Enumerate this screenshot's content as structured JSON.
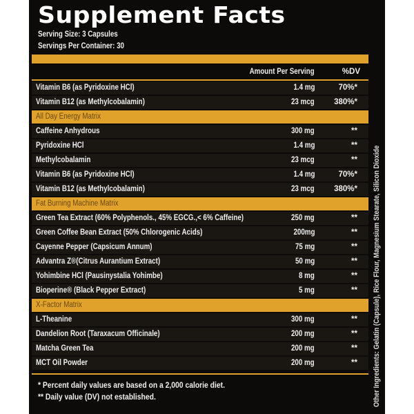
{
  "title": "Supplement Facts",
  "serving_size": "Serving Size: 3 Capsules",
  "servings_per_container": "Servings Per Container: 30",
  "columns": {
    "amount": "Amount Per Serving",
    "dv": "%DV"
  },
  "rows": [
    {
      "name": "Vitamin B6 (as Pyridoxine HCl)",
      "amount": "1.4 mg",
      "dv": "70%*"
    },
    {
      "name": "Vitamin B12 (as Methylcobalamin)",
      "amount": "23 mcg",
      "dv": "380%*"
    },
    {
      "section": "All Day Energy Matrix"
    },
    {
      "name": "Caffeine Anhydrous",
      "amount": "300 mg",
      "dv": "**"
    },
    {
      "name": "Pyridoxine HCl",
      "amount": "1.4 mg",
      "dv": "**"
    },
    {
      "name": "Methylcobalamin",
      "amount": "23 mcg",
      "dv": "**"
    },
    {
      "name": "Vitamin B6 (as Pyridoxine HCl)",
      "amount": "1.4 mg",
      "dv": "70%*"
    },
    {
      "name": "Vitamin B12 (as Methylcobalamin)",
      "amount": "23 mcg",
      "dv": "380%*"
    },
    {
      "section": "Fat Burning Machine Matrix"
    },
    {
      "name": "Green Tea Extract (60% Polyphenols., 45% EGCG.,< 6% Caffeine)",
      "amount": "250 mg",
      "dv": "**"
    },
    {
      "name": "Green Coffee Bean Extract (50% Chlorogenic Acids)",
      "amount": "200mg",
      "dv": "**"
    },
    {
      "name": "Cayenne Pepper (Capsicum Annum)",
      "amount": "75 mg",
      "dv": "**"
    },
    {
      "name": "Advantra Z®(Citrus Aurantium Extract)",
      "amount": "50 mg",
      "dv": "**"
    },
    {
      "name": "Yohimbine HCl (Pausinystalia Yohimbe)",
      "amount": "8 mg",
      "dv": "**"
    },
    {
      "name": "Bioperine® (Black Pepper Extract)",
      "amount": "5 mg",
      "dv": "**"
    },
    {
      "section": "X-Factor Matrix"
    },
    {
      "name": "L-Theanine",
      "amount": "300 mg",
      "dv": "**"
    },
    {
      "name": "Dandelion Root (Taraxacum Officinale)",
      "amount": "200 mg",
      "dv": "**"
    },
    {
      "name": "Matcha Green Tea",
      "amount": "200 mg",
      "dv": "**"
    },
    {
      "name": "MCT Oil Powder",
      "amount": "200 mg",
      "dv": "**"
    }
  ],
  "footnotes": [
    "* Percent daily values are based on a 2,000 calorie diet.",
    "** Daily value (DV) not established."
  ],
  "other_ingredients": "Other Ingredients: Gelatin (Capsule), Rice Flour, Magnesium Stearate, Silicon Dioxide",
  "colors": {
    "accent": "#e0a22a",
    "background": "#0d0b09"
  }
}
